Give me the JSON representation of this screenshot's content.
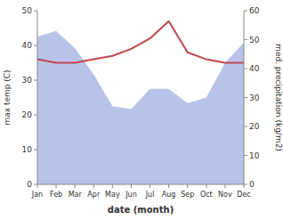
{
  "chart_data": {
    "type": "line",
    "xlabel": "date (month)",
    "ylabel": "max temp (C)",
    "y2label": "med. precipitation (kg/m2)",
    "categories": [
      "Jan",
      "Feb",
      "Mar",
      "Apr",
      "May",
      "Jun",
      "Jul",
      "Aug",
      "Sep",
      "Oct",
      "Nov",
      "Dec"
    ],
    "series": [
      {
        "type": "area",
        "axis": "y2",
        "color": "#b0bce8",
        "values": [
          51,
          53,
          47,
          38,
          27,
          26,
          33,
          33,
          28,
          30,
          42,
          49
        ]
      },
      {
        "type": "line",
        "color": "#c0474a",
        "values": [
          36,
          35,
          35,
          36,
          37,
          39,
          42,
          47,
          38,
          36,
          35,
          35
        ]
      }
    ],
    "ylim": [
      0,
      50
    ],
    "yticks": [
      0,
      10,
      20,
      30,
      40,
      50
    ],
    "y2lim": [
      0,
      60
    ],
    "y2ticks": [
      0,
      10,
      20,
      30,
      40,
      50,
      60
    ],
    "grid": false
  }
}
